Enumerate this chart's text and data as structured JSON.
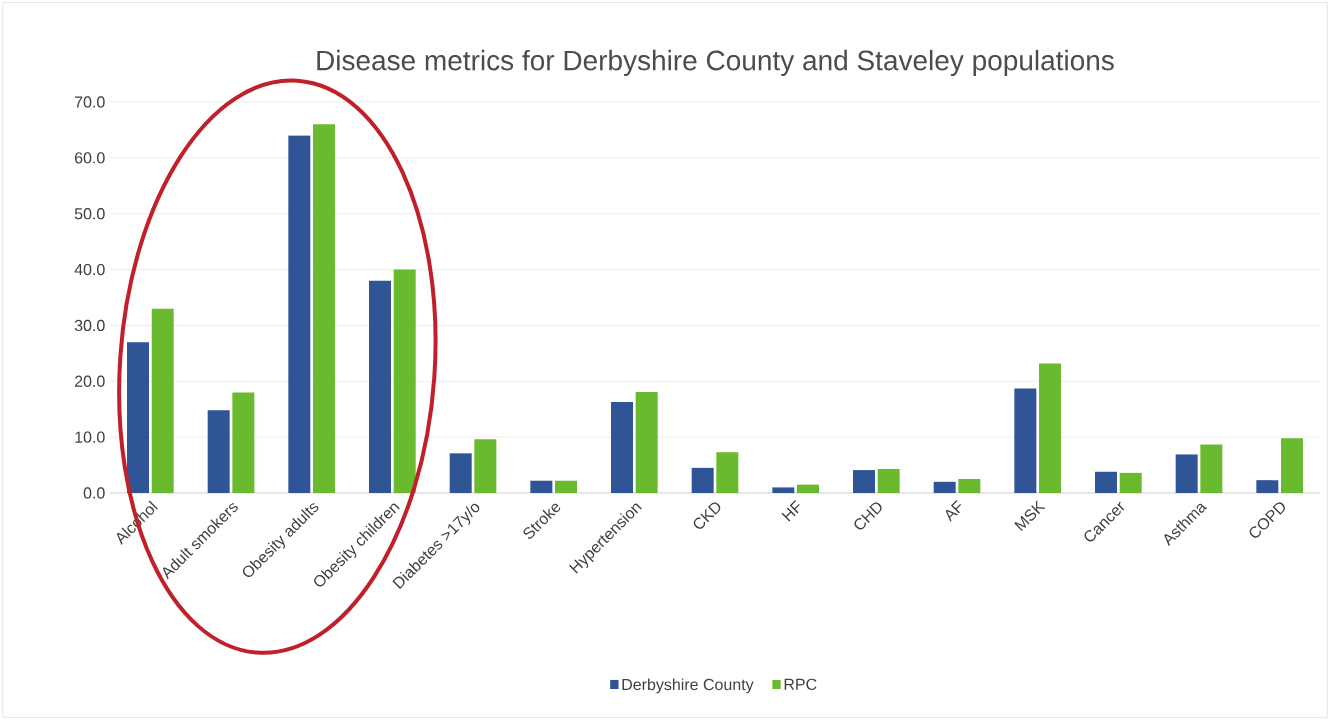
{
  "chart_data": {
    "type": "bar",
    "title": "Disease metrics for Derbyshire County and Staveley populations",
    "categories": [
      "Alcohol",
      "Adult smokers",
      "Obesity adults",
      "Obesity children",
      "Diabetes >17y/o",
      "Stroke",
      "Hypertension",
      "CKD",
      "HF",
      "CHD",
      "AF",
      "MSK",
      "Cancer",
      "Asthma",
      "COPD"
    ],
    "series": [
      {
        "name": "Derbyshire County",
        "color": "#2f5597",
        "values": [
          27.0,
          14.8,
          64.0,
          38.0,
          7.1,
          2.2,
          16.3,
          4.5,
          1.0,
          4.1,
          2.0,
          18.7,
          3.8,
          6.9,
          2.3
        ]
      },
      {
        "name": "RPC",
        "color": "#6aba2f",
        "values": [
          33.0,
          18.0,
          66.0,
          40.0,
          9.6,
          2.2,
          18.1,
          7.3,
          1.5,
          4.3,
          2.5,
          23.2,
          3.6,
          8.7,
          9.8
        ]
      }
    ],
    "ylim": [
      0,
      70
    ],
    "yticks": [
      {
        "value": 0,
        "label": "0.0"
      },
      {
        "value": 10,
        "label": "10.0"
      },
      {
        "value": 20,
        "label": "20.0"
      },
      {
        "value": 30,
        "label": "30.0"
      },
      {
        "value": 40,
        "label": "40.0"
      },
      {
        "value": 50,
        "label": "50.0"
      },
      {
        "value": 60,
        "label": "60.0"
      },
      {
        "value": 70,
        "label": "70.0"
      }
    ],
    "grid": "y",
    "legend": "bottom"
  }
}
